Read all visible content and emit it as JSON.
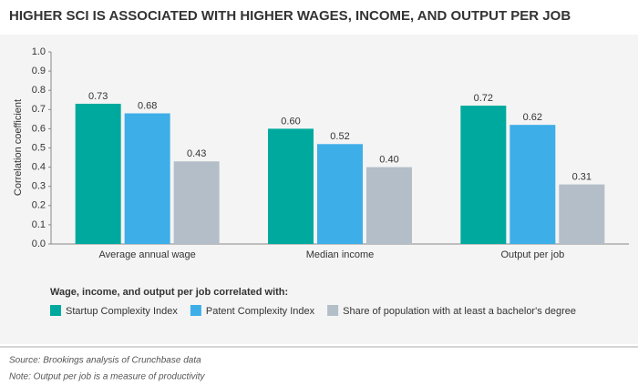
{
  "chart_data": {
    "type": "bar",
    "title": "HIGHER SCI IS ASSOCIATED WITH HIGHER WAGES, INCOME, AND OUTPUT PER JOB",
    "y_label": "Correlation coefficient",
    "categories": [
      "Average annual wage",
      "Median income",
      "Output per job"
    ],
    "series": [
      {
        "name": "Startup Complexity Index",
        "color": "#00a99d",
        "values": [
          0.73,
          0.6,
          0.72
        ],
        "value_labels": [
          "0.73",
          "0.60",
          "0.72"
        ]
      },
      {
        "name": "Patent Complexity Index",
        "color": "#3eaee8",
        "values": [
          0.68,
          0.52,
          0.62
        ],
        "value_labels": [
          "0.68",
          "0.52",
          "0.62"
        ]
      },
      {
        "name": "Share of population with at least a bachelor's degree",
        "color": "#b3bec8",
        "values": [
          0.43,
          0.4,
          0.31
        ],
        "value_labels": [
          "0.43",
          "0.40",
          "0.31"
        ]
      }
    ],
    "ylim": [
      0,
      1
    ],
    "yticks": [
      {
        "value": 0,
        "label": "0.0"
      },
      {
        "value": 0.1,
        "label": "0.1"
      },
      {
        "value": 0.2,
        "label": "0.2"
      },
      {
        "value": 0.3,
        "label": "0.3"
      },
      {
        "value": 0.4,
        "label": "0.4"
      },
      {
        "value": 0.5,
        "label": "0.5"
      },
      {
        "value": 0.6,
        "label": "0.6"
      },
      {
        "value": 0.7,
        "label": "0.7"
      },
      {
        "value": 0.8,
        "label": "0.8"
      },
      {
        "value": 0.9,
        "label": "0.9"
      },
      {
        "value": 1,
        "label": "1.0"
      }
    ],
    "legend_title": "Wage, income, and output per job correlated with:",
    "source": "Source: Brookings analysis of Crunchbase data",
    "note": "Note: Output per job is a measure of productivity"
  }
}
